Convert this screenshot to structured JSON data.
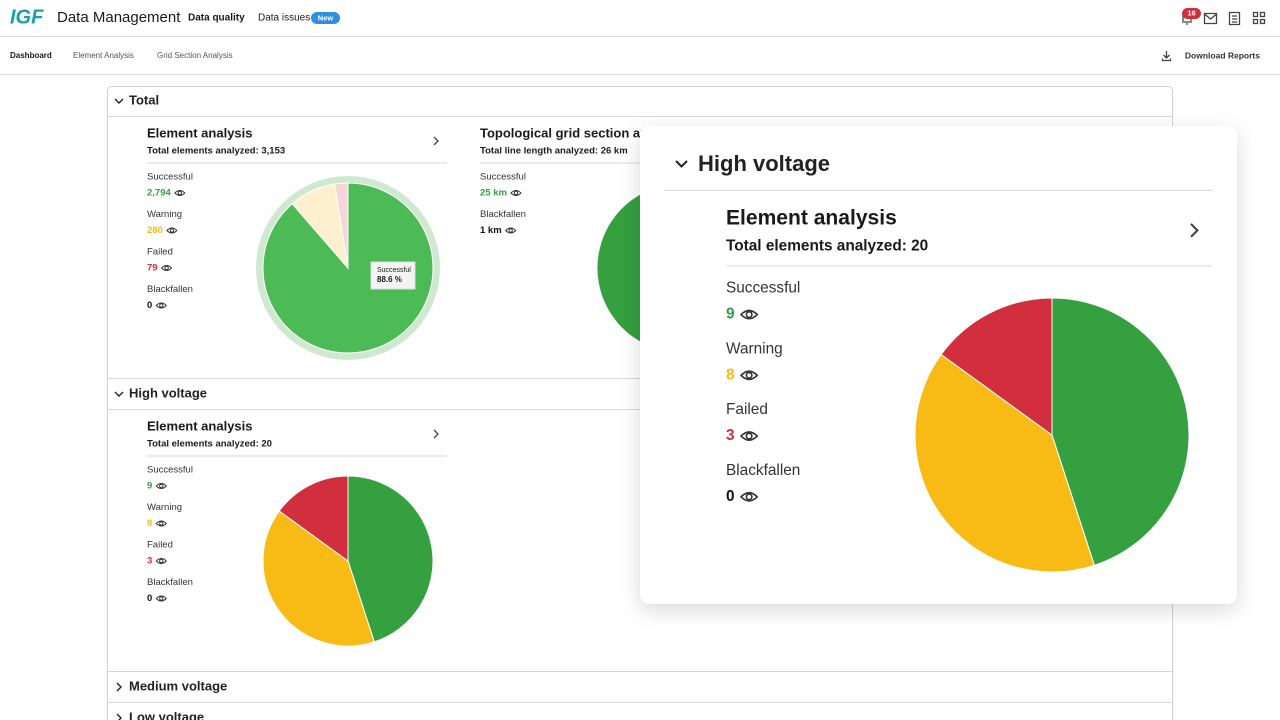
{
  "header": {
    "logo": "IGF",
    "app_title": "Data Management",
    "nav": [
      {
        "label": "Data quality"
      },
      {
        "label": "Data issues",
        "badge": "New"
      }
    ],
    "notification_count": "16"
  },
  "subnav": {
    "tabs": [
      "Dashboard",
      "Element Analysis",
      "Grid Section Analysis"
    ],
    "download": "Download Reports"
  },
  "sections": [
    {
      "title": "Total",
      "expanded": true,
      "cards": [
        {
          "title": "Element analysis",
          "summary": "Total elements analyzed: 3,153",
          "stats": [
            {
              "name": "Successful",
              "value": 2794,
              "label": "2,794",
              "color": "#34a03f",
              "slice_color": "#4cba55"
            },
            {
              "name": "Warning",
              "value": 280,
              "color": "#f8bb16",
              "slice_color": "#fdf0cf"
            },
            {
              "name": "Failed",
              "value": 79,
              "color": "#d12e3e",
              "slice_color": "#f6d5d8"
            },
            {
              "name": "Blackfallen",
              "value": 0,
              "color": "#111111",
              "slice_color": "#555555"
            }
          ],
          "tooltip": {
            "title": "Successful",
            "text": "88.6 %"
          }
        },
        {
          "title": "Topological grid section analysis",
          "summary": "Total line length analyzed: 26 km",
          "stats": [
            {
              "name": "Successful",
              "value": 25,
              "label": "25 km",
              "color": "#34a03f",
              "slice_color": "#34a03f"
            },
            {
              "name": "Blackfallen",
              "value": 1,
              "label": "1 km",
              "color": "#111111",
              "slice_color": "#555555"
            }
          ]
        }
      ]
    },
    {
      "title": "High voltage",
      "expanded": true,
      "cards": [
        {
          "title": "Element analysis",
          "summary": "Total elements analyzed: 20",
          "stats": [
            {
              "name": "Successful",
              "value": 9,
              "color": "#34a03f",
              "slice_color": "#34a03f"
            },
            {
              "name": "Warning",
              "value": 8,
              "color": "#f8bb16",
              "slice_color": "#f8bb16"
            },
            {
              "name": "Failed",
              "value": 3,
              "color": "#d12e3e",
              "slice_color": "#d12e3e"
            },
            {
              "name": "Blackfallen",
              "value": 0,
              "color": "#111111",
              "slice_color": "#555555"
            }
          ]
        }
      ]
    },
    {
      "title": "Medium voltage",
      "expanded": false
    },
    {
      "title": "Low voltage",
      "expanded": false
    }
  ],
  "popup": {
    "section_title": "High voltage",
    "card": {
      "title": "Element analysis",
      "summary": "Total elements analyzed: 20",
      "stats": [
        {
          "name": "Successful",
          "value": 9,
          "color": "#34a03f",
          "slice_color": "#34a03f"
        },
        {
          "name": "Warning",
          "value": 8,
          "color": "#f8bb16",
          "slice_color": "#f8bb16"
        },
        {
          "name": "Failed",
          "value": 3,
          "color": "#d12e3e",
          "slice_color": "#d12e3e"
        },
        {
          "name": "Blackfallen",
          "value": 0,
          "color": "#111111",
          "slice_color": "#555555"
        }
      ]
    }
  }
}
